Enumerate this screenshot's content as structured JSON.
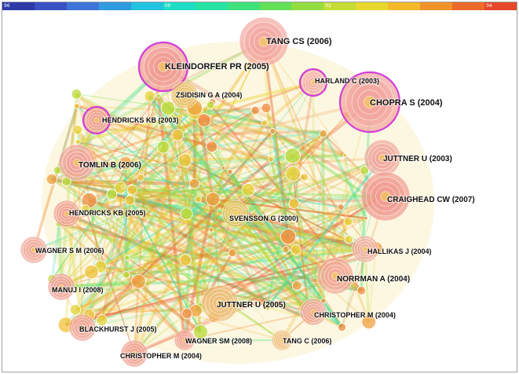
{
  "timeline": {
    "colors": [
      "#2e3aa8",
      "#3a52c4",
      "#3f74d8",
      "#2f9be0",
      "#22c3de",
      "#1fdcc4",
      "#27e2a2",
      "#3fe27c",
      "#63df55",
      "#92dc3e",
      "#c4dc33",
      "#e8d72e",
      "#f2b92a",
      "#f2932a",
      "#ee6a2a",
      "#e7472a"
    ],
    "tick_labels": [
      "96",
      "00",
      "02",
      "04"
    ]
  },
  "nodes": [
    {
      "id": "tang-cs-2006",
      "label": "TANG CS (2006)",
      "weight": 5,
      "color": "#f3a6a0",
      "highlight": false
    },
    {
      "id": "kleindorfer-pr-2005",
      "label": "KLEINDORFER PR (2005)",
      "weight": 5,
      "color": "#f19a92",
      "highlight": true
    },
    {
      "id": "harland-c-2003",
      "label": "HARLAND C (2003)",
      "weight": 3,
      "color": "#f4b0a5",
      "highlight": true
    },
    {
      "id": "zsidisin-ga-2004",
      "label": "ZSIDISIN G A (2004)",
      "weight": 3,
      "color": "#e9c06a",
      "highlight": false
    },
    {
      "id": "chopra-s-2004",
      "label": "CHOPRA S (2004)",
      "weight": 6,
      "color": "#f3a49c",
      "highlight": true
    },
    {
      "id": "hendricks-kb-2003",
      "label": "HENDRICKS KB (2003)",
      "weight": 3,
      "color": "#f0a090",
      "highlight": true
    },
    {
      "id": "tomlin-b-2006",
      "label": "TOMLIN B (2006)",
      "weight": 4,
      "color": "#f1a49a",
      "highlight": false
    },
    {
      "id": "juttner-u-2003",
      "label": "JUTTNER U (2003)",
      "weight": 4,
      "color": "#f1a89e",
      "highlight": false
    },
    {
      "id": "craighead-cw-2007",
      "label": "CRAIGHEAD CW (2007)",
      "weight": 5,
      "color": "#f19a90",
      "highlight": false
    },
    {
      "id": "hendricks-kb-2005",
      "label": "HENDRICKS KB (2005)",
      "weight": 3,
      "color": "#f0a090",
      "highlight": false
    },
    {
      "id": "svensson-g-2000",
      "label": "SVENSSON G (2000)",
      "weight": 3,
      "color": "#e8c86a",
      "highlight": false
    },
    {
      "id": "wagner-sm-2006",
      "label": "WAGNER S M (2006)",
      "weight": 3,
      "color": "#f1a898",
      "highlight": false
    },
    {
      "id": "hallikas-j-2004",
      "label": "HALLIKAS J (2004)",
      "weight": 3,
      "color": "#f1b0a2",
      "highlight": false
    },
    {
      "id": "manuj-i-2008",
      "label": "MANUJ I (2008)",
      "weight": 3,
      "color": "#ef9f92",
      "highlight": false
    },
    {
      "id": "norrman-a-2004",
      "label": "NORRMAN A (2004)",
      "weight": 4,
      "color": "#f2aa98",
      "highlight": false
    },
    {
      "id": "juttner-u-2005",
      "label": "JUTTNER U (2005)",
      "weight": 4,
      "color": "#eec07a",
      "highlight": false
    },
    {
      "id": "christopher-m-2004a",
      "label": "CHRISTOPHER M (2004)",
      "weight": 3,
      "color": "#f1a898",
      "highlight": false
    },
    {
      "id": "blackhurst-j-2005",
      "label": "BLACKHURST J (2005)",
      "weight": 3,
      "color": "#f0a494",
      "highlight": false
    },
    {
      "id": "wagner-sm-2008",
      "label": "WAGNER SM (2008)",
      "weight": 2,
      "color": "#f0a08e",
      "highlight": false
    },
    {
      "id": "tang-c-2006",
      "label": "TANG C (2006)",
      "weight": 2,
      "color": "#f0c080",
      "highlight": false
    },
    {
      "id": "christopher-m-2004b",
      "label": "CHRISTOPHER M (2004)",
      "weight": 3,
      "color": "#f0a08e",
      "highlight": false
    }
  ]
}
